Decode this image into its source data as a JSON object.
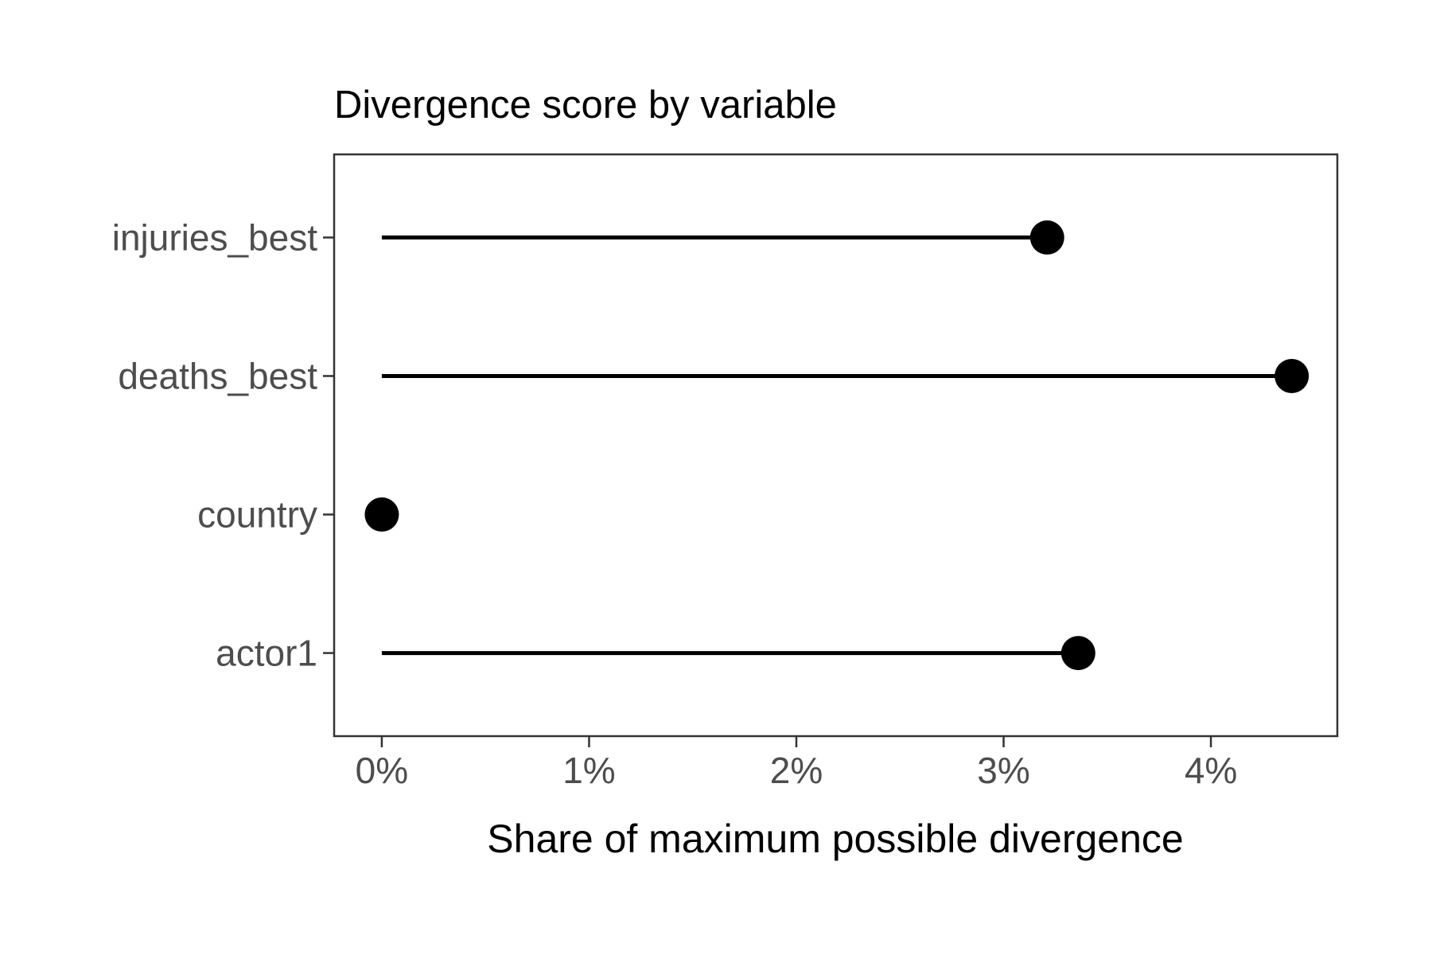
{
  "page": {
    "background": "#ffffff"
  },
  "chart_data": {
    "type": "bar",
    "variant": "lollipop",
    "orientation": "horizontal",
    "title": "Divergence score by variable",
    "xlabel": "Share of maximum possible divergence",
    "ylabel": "",
    "categories": [
      "injuries_best",
      "deaths_best",
      "country",
      "actor1"
    ],
    "values": [
      3.21,
      4.39,
      0,
      3.36
    ],
    "unit": "%",
    "xlim": [
      -0.23,
      4.61
    ],
    "x_ticks": [
      0,
      1,
      2,
      3,
      4
    ],
    "x_tick_labels": [
      "0%",
      "1%",
      "2%",
      "3%",
      "4%"
    ],
    "grid": false,
    "legend": false,
    "colors": {
      "point": "#000000",
      "stem": "#000000",
      "panel_border": "#333333",
      "axis_text": "#4d4d4d",
      "title_text": "#000000",
      "background": "#ffffff"
    }
  }
}
